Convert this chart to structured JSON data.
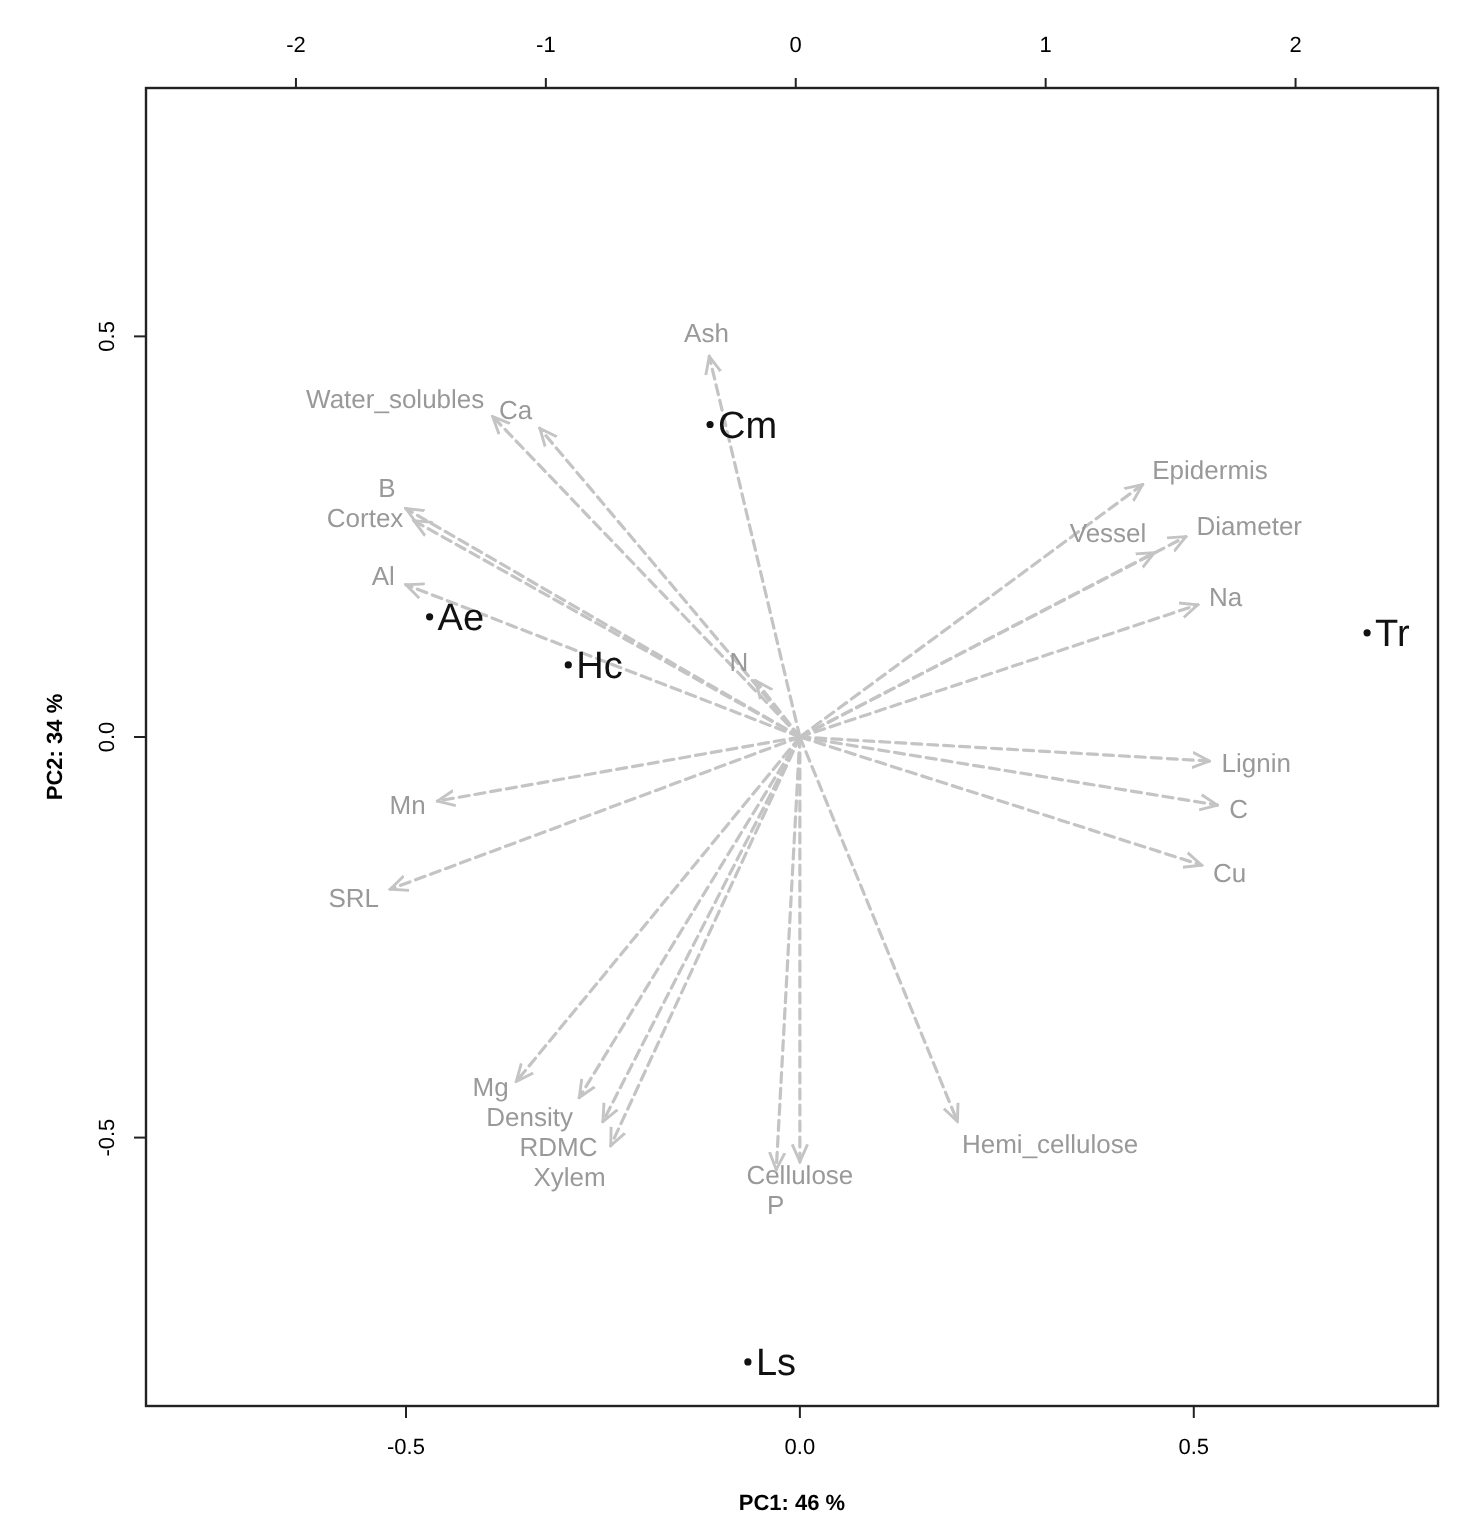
{
  "chart_data": {
    "type": "line",
    "xlabel": "PC1: 46 %",
    "ylabel": "PC2: 34 %",
    "xlim": [
      -0.83,
      0.81
    ],
    "ylim": [
      -0.835,
      0.81
    ],
    "xticks": [
      {
        "value": -0.5,
        "label": "-0.5"
      },
      {
        "value": 0,
        "label": "0.0"
      },
      {
        "value": 0.5,
        "label": "0.5"
      }
    ],
    "yticks": [
      {
        "value": -0.5,
        "label": "-0.5"
      },
      {
        "value": 0,
        "label": "0.0"
      },
      {
        "value": 0.5,
        "label": "0.5"
      }
    ],
    "x2lim": [
      -2.6,
      2.57
    ],
    "x2ticks": [
      -2,
      -1,
      0,
      1,
      2
    ],
    "marker": "none",
    "line_style": "dashed",
    "series": [
      {
        "name": "Ash",
        "color": "#c4c4c4",
        "x": [
          0,
          -0.115
        ],
        "values": [
          0,
          0.475
        ]
      },
      {
        "name": "Water_solubles",
        "color": "#c4c4c4",
        "x": [
          0,
          -0.39
        ],
        "values": [
          0,
          0.4
        ]
      },
      {
        "name": "Ca",
        "color": "#c4c4c4",
        "x": [
          0,
          -0.33
        ],
        "values": [
          0,
          0.385
        ]
      },
      {
        "name": "B",
        "color": "#c4c4c4",
        "x": [
          0,
          -0.5
        ],
        "values": [
          0,
          0.285
        ]
      },
      {
        "name": "Cortex",
        "color": "#c4c4c4",
        "x": [
          0,
          -0.49
        ],
        "values": [
          0,
          0.27
        ]
      },
      {
        "name": "Al",
        "color": "#c4c4c4",
        "x": [
          0,
          -0.5
        ],
        "values": [
          0,
          0.19
        ]
      },
      {
        "name": "N",
        "color": "#c4c4c4",
        "x": [
          0,
          -0.056
        ],
        "values": [
          0,
          0.07
        ]
      },
      {
        "name": "Mn",
        "color": "#c4c4c4",
        "x": [
          0,
          -0.46
        ],
        "values": [
          0,
          -0.08
        ]
      },
      {
        "name": "SRL",
        "color": "#c4c4c4",
        "x": [
          0,
          -0.52
        ],
        "values": [
          0,
          -0.19
        ]
      },
      {
        "name": "Mg",
        "color": "#c4c4c4",
        "x": [
          0,
          -0.36
        ],
        "values": [
          0,
          -0.43
        ]
      },
      {
        "name": "Density",
        "color": "#c4c4c4",
        "x": [
          0,
          -0.28
        ],
        "values": [
          0,
          -0.45
        ]
      },
      {
        "name": "RDMC",
        "color": "#c4c4c4",
        "x": [
          0,
          -0.25
        ],
        "values": [
          0,
          -0.48
        ]
      },
      {
        "name": "Xylem",
        "color": "#c4c4c4",
        "x": [
          0,
          -0.24
        ],
        "values": [
          0,
          -0.51
        ]
      },
      {
        "name": "Cellulose",
        "color": "#c4c4c4",
        "x": [
          0,
          0.0
        ],
        "values": [
          0,
          -0.53
        ]
      },
      {
        "name": "P",
        "color": "#c4c4c4",
        "x": [
          0,
          -0.03
        ],
        "values": [
          0,
          -0.54
        ]
      },
      {
        "name": "Hemi_cellulose",
        "color": "#c4c4c4",
        "x": [
          0,
          0.2
        ],
        "values": [
          0,
          -0.48
        ]
      },
      {
        "name": "Epidermis",
        "color": "#c4c4c4",
        "x": [
          0,
          0.435
        ],
        "values": [
          0,
          0.315
        ]
      },
      {
        "name": "Diameter",
        "color": "#c4c4c4",
        "x": [
          0,
          0.49
        ],
        "values": [
          0,
          0.25
        ]
      },
      {
        "name": "Vessel",
        "color": "#c4c4c4",
        "x": [
          0,
          0.45
        ],
        "values": [
          0,
          0.23
        ]
      },
      {
        "name": "Na",
        "color": "#c4c4c4",
        "x": [
          0,
          0.505
        ],
        "values": [
          0,
          0.165
        ]
      },
      {
        "name": "Lignin",
        "color": "#c4c4c4",
        "x": [
          0,
          0.52
        ],
        "values": [
          0,
          -0.03
        ]
      },
      {
        "name": "C",
        "color": "#c4c4c4",
        "x": [
          0,
          0.53
        ],
        "values": [
          0,
          -0.085
        ]
      },
      {
        "name": "Cu",
        "color": "#c4c4c4",
        "x": [
          0,
          0.51
        ],
        "values": [
          0,
          -0.16
        ]
      },
      {
        "type": "scatter",
        "marker": "circle",
        "color": "#111111",
        "x": [
          -0.114,
          -0.47,
          -0.294,
          0.72,
          -0.066
        ],
        "values": [
          0.39,
          0.15,
          0.09,
          0.13,
          -0.78
        ],
        "value_labels": [
          "Cm",
          "Ae",
          "Hc",
          "Tr",
          "Ls"
        ]
      }
    ]
  }
}
